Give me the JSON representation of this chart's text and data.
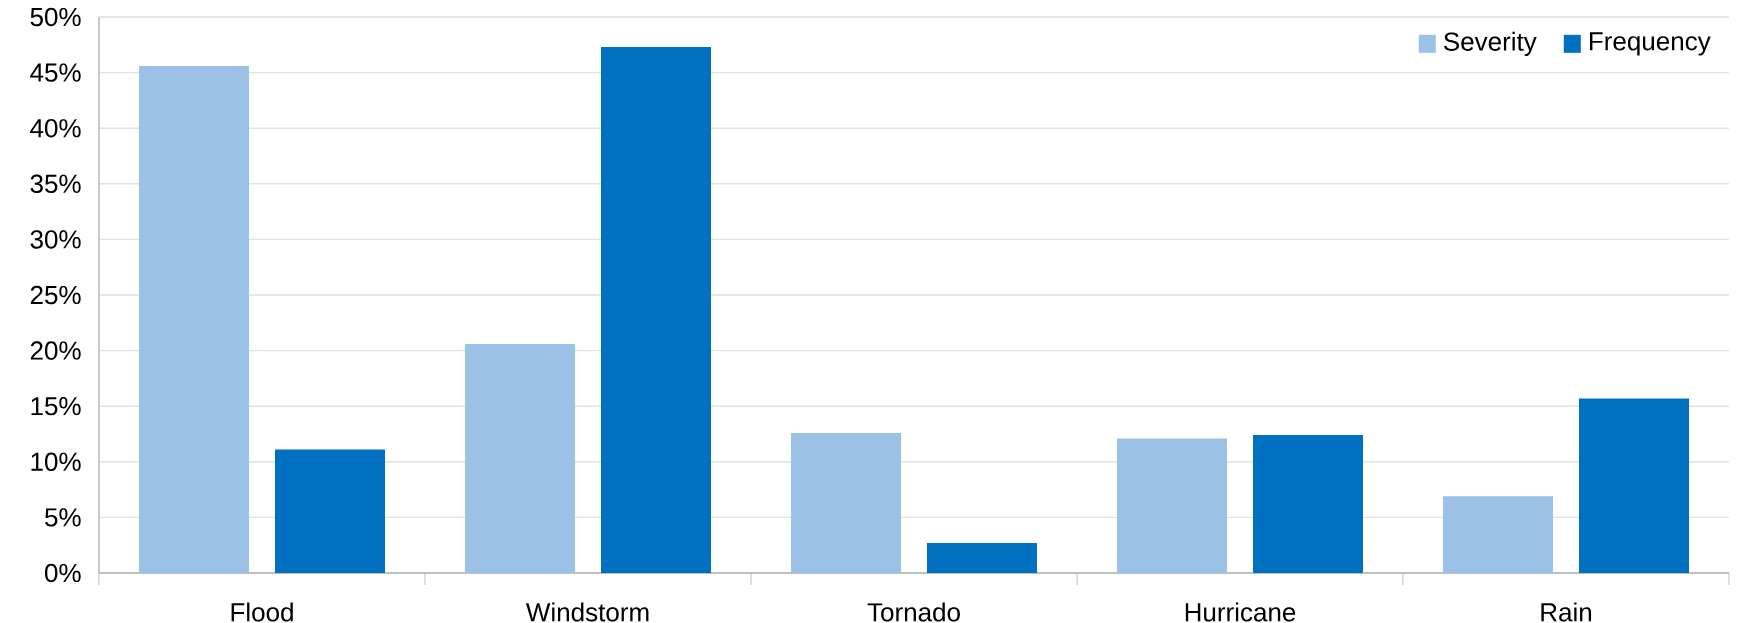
{
  "chart_data": {
    "type": "bar",
    "categories": [
      "Flood",
      "Windstorm",
      "Tornado",
      "Hurricane",
      "Rain"
    ],
    "series": [
      {
        "name": "Severity",
        "color": "#9bc2e6",
        "values": [
          45.6,
          20.6,
          12.6,
          12.1,
          6.9
        ]
      },
      {
        "name": "Frequency",
        "color": "#0070c0",
        "values": [
          11.1,
          47.3,
          2.7,
          12.4,
          15.7
        ]
      }
    ],
    "ylim": [
      0,
      50
    ],
    "yticks": [
      {
        "value": 0,
        "label": "0%"
      },
      {
        "value": 5,
        "label": "5%"
      },
      {
        "value": 10,
        "label": "10%"
      },
      {
        "value": 15,
        "label": "15%"
      },
      {
        "value": 20,
        "label": "20%"
      },
      {
        "value": 25,
        "label": "25%"
      },
      {
        "value": 30,
        "label": "30%"
      },
      {
        "value": 35,
        "label": "35%"
      },
      {
        "value": 40,
        "label": "40%"
      },
      {
        "value": 45,
        "label": "45%"
      },
      {
        "value": 50,
        "label": "50%"
      }
    ],
    "grid": "y",
    "legend": "top right"
  }
}
